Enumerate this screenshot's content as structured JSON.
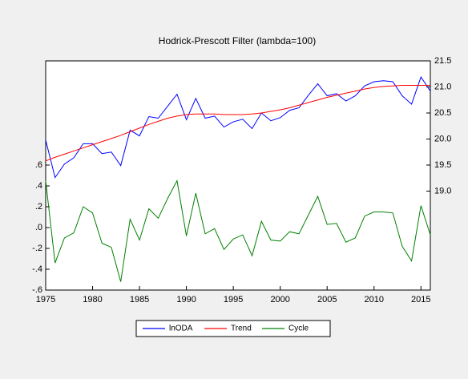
{
  "chart_data": {
    "type": "line",
    "title": "Hodrick-Prescott Filter (lambda=100)",
    "x": [
      1975,
      1976,
      1977,
      1978,
      1979,
      1980,
      1981,
      1982,
      1983,
      1984,
      1985,
      1986,
      1987,
      1988,
      1989,
      1990,
      1991,
      1992,
      1993,
      1994,
      1995,
      1996,
      1997,
      1998,
      1999,
      2000,
      2001,
      2002,
      2003,
      2004,
      2005,
      2006,
      2007,
      2008,
      2009,
      2010,
      2011,
      2012,
      2013,
      2014,
      2015,
      2016
    ],
    "series": [
      {
        "name": "lnODA",
        "color": "#0000ff",
        "axis": "y2",
        "values": [
          19.98,
          19.26,
          19.52,
          19.64,
          19.91,
          19.91,
          19.72,
          19.75,
          19.49,
          20.17,
          20.06,
          20.43,
          20.4,
          20.63,
          20.86,
          20.37,
          20.78,
          20.4,
          20.44,
          20.23,
          20.33,
          20.38,
          20.2,
          20.5,
          20.35,
          20.41,
          20.55,
          20.6,
          20.84,
          21.06,
          20.83,
          20.87,
          20.73,
          20.83,
          21.02,
          21.1,
          21.12,
          21.1,
          20.83,
          20.67,
          21.19,
          20.92
        ]
      },
      {
        "name": "Trend",
        "color": "#ff0000",
        "axis": "y2",
        "values": [
          19.58,
          19.65,
          19.71,
          19.77,
          19.83,
          19.89,
          19.95,
          20.01,
          20.07,
          20.14,
          20.21,
          20.28,
          20.34,
          20.4,
          20.44,
          20.47,
          20.48,
          20.48,
          20.48,
          20.47,
          20.47,
          20.47,
          20.48,
          20.5,
          20.53,
          20.56,
          20.6,
          20.65,
          20.7,
          20.75,
          20.8,
          20.84,
          20.88,
          20.92,
          20.96,
          20.99,
          21.01,
          21.02,
          21.03,
          21.03,
          21.03,
          21.03
        ]
      },
      {
        "name": "Cycle",
        "color": "#008000",
        "values": [
          0.45,
          -0.34,
          -0.1,
          -0.05,
          0.2,
          0.14,
          -0.15,
          -0.19,
          -0.52,
          0.08,
          -0.12,
          0.18,
          0.09,
          0.28,
          0.45,
          -0.08,
          0.33,
          -0.06,
          -0.01,
          -0.21,
          -0.11,
          -0.07,
          -0.27,
          0.06,
          -0.12,
          -0.13,
          -0.04,
          -0.06,
          0.12,
          0.3,
          0.03,
          0.04,
          -0.14,
          -0.1,
          0.11,
          0.15,
          0.15,
          0.14,
          -0.18,
          -0.32,
          0.21,
          -0.07
        ]
      }
    ],
    "xlim": [
      1975,
      2016
    ],
    "xticks": [
      1975,
      1980,
      1985,
      1990,
      1995,
      2000,
      2005,
      2010,
      2015
    ],
    "ylim": [
      -0.6,
      1.6
    ],
    "yticks": [
      {
        "value": 0.6,
        "label": ".6"
      },
      {
        "value": 0.4,
        "label": ".4"
      },
      {
        "value": 0.2,
        "label": ".2"
      },
      {
        "value": 0,
        "label": ".0"
      },
      {
        "value": -0.2,
        "label": "-.2"
      },
      {
        "value": -0.4,
        "label": "-.4"
      },
      {
        "value": -0.6,
        "label": "-.6"
      }
    ],
    "y2lim": [
      17.1,
      21.5
    ],
    "y2ticks": [
      {
        "value": 19,
        "label": "19.0"
      },
      19.5,
      {
        "value": 20,
        "label": "20.0"
      },
      20.5,
      {
        "value": 21,
        "label": "21.0"
      },
      21.5
    ],
    "legend": "bottom"
  }
}
